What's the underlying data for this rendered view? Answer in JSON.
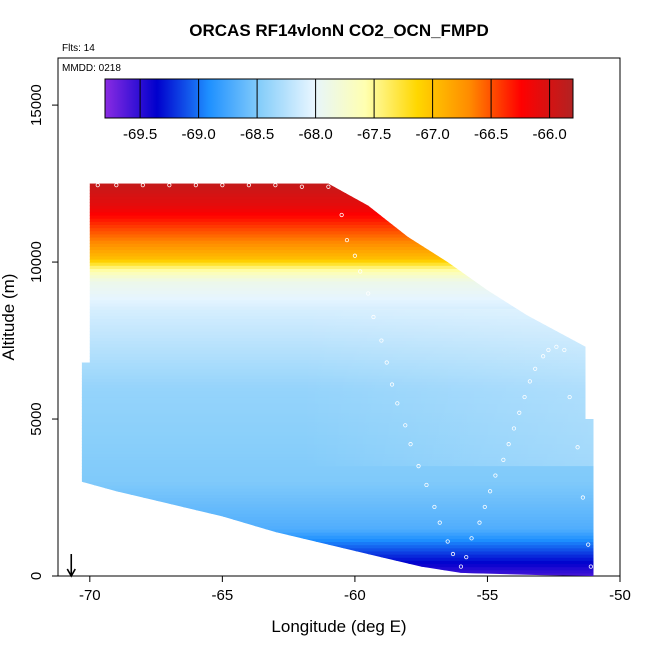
{
  "chart_data": {
    "type": "heatmap",
    "title": "ORCAS RF14vlonN CO2_OCN_FMPD",
    "note_flts": "Flts: 14",
    "note_mmdd": "MMDD: 0218",
    "xlabel": "Longitude (deg E)",
    "ylabel": "Altitude (m)",
    "xlim": [
      -71.2,
      -50
    ],
    "ylim": [
      0,
      16500
    ],
    "x_ticks": [
      -70,
      -65,
      -60,
      -55,
      -50
    ],
    "x_tick_labels": [
      "-70",
      "-65",
      "-60",
      "-55",
      "-50"
    ],
    "y_ticks": [
      0,
      5000,
      10000,
      15000
    ],
    "y_tick_labels": [
      "0",
      "5000",
      "10000",
      "15000"
    ],
    "colorbar": {
      "range": [
        -69.8,
        -65.8
      ],
      "ticks": [
        -69.5,
        -69.0,
        -68.5,
        -68.0,
        -67.5,
        -67.0,
        -66.5,
        -66.0
      ],
      "tick_labels": [
        "-69.5",
        "-69.0",
        "-68.5",
        "-68.0",
        "-67.5",
        "-67.0",
        "-66.5",
        "-66.0"
      ],
      "colors": [
        "#8a2be2",
        "#0000cd",
        "#1e90ff",
        "#87cefa",
        "#e6f5ff",
        "#ffffb0",
        "#ffd700",
        "#ff8c00",
        "#ff0000",
        "#b22222"
      ]
    },
    "field_profile": {
      "altitude_m": [
        0,
        700,
        1500,
        3000,
        6000,
        8500,
        9400,
        9800,
        10100,
        10600,
        11200,
        11800,
        12500
      ],
      "value": [
        -69.6,
        -69.2,
        -68.7,
        -68.5,
        -68.4,
        -68.1,
        -67.9,
        -67.5,
        -67.0,
        -66.7,
        -66.4,
        -66.1,
        -65.9
      ]
    },
    "field_extent": {
      "top_envelope": {
        "lon": [
          -70.0,
          -61.0,
          -59.5,
          -58.0,
          -56.5,
          -55.0,
          -53.5,
          -51.3,
          -51.3
        ],
        "alt": [
          12500,
          12500,
          11800,
          10800,
          10000,
          9100,
          8300,
          7300,
          5000
        ]
      },
      "bottom_envelope": {
        "lon": [
          -70.3,
          -69.0,
          -67.0,
          -65.0,
          -63.0,
          -61.0,
          -59.0,
          -57.5,
          -56.0,
          -53.0,
          -51.0
        ],
        "alt": [
          3000,
          2700,
          2300,
          1900,
          1400,
          1000,
          600,
          300,
          100,
          30,
          0
        ]
      },
      "left_edge": {
        "lon": -70.3,
        "alt_low": 3000,
        "alt_high": 6800
      }
    },
    "flight_track": {
      "lon": [
        -69.7,
        -69.0,
        -68.0,
        -67.0,
        -66.0,
        -65.0,
        -64.0,
        -63.0,
        -62.0,
        -61.0,
        -60.5,
        -60.3,
        -60.0,
        -59.8,
        -59.5,
        -59.3,
        -59.0,
        -58.8,
        -58.6,
        -58.4,
        -58.1,
        -57.9,
        -57.6,
        -57.3,
        -57.0,
        -56.8,
        -56.5,
        -56.3,
        -56.0,
        -55.8,
        -55.6,
        -55.3,
        -55.1,
        -54.9,
        -54.7,
        -54.4,
        -54.2,
        -54.0,
        -53.8,
        -53.6,
        -53.4,
        -53.2,
        -52.9,
        -52.7,
        -52.4,
        -52.1,
        -51.9,
        -51.6,
        -51.4,
        -51.2,
        -51.1
      ],
      "alt": [
        12450,
        12450,
        12450,
        12450,
        12450,
        12450,
        12450,
        12450,
        12400,
        12400,
        11500,
        10700,
        10200,
        9700,
        9000,
        8250,
        7500,
        6800,
        6100,
        5500,
        4800,
        4200,
        3500,
        2900,
        2200,
        1700,
        1100,
        700,
        300,
        600,
        1200,
        1700,
        2200,
        2700,
        3200,
        3700,
        4200,
        4700,
        5200,
        5700,
        6200,
        6600,
        7000,
        7200,
        7300,
        7200,
        5700,
        4100,
        2500,
        1000,
        300
      ]
    },
    "dive_marker": {
      "lon": -70.7,
      "alt_top": 700,
      "alt_bottom": 0
    }
  }
}
